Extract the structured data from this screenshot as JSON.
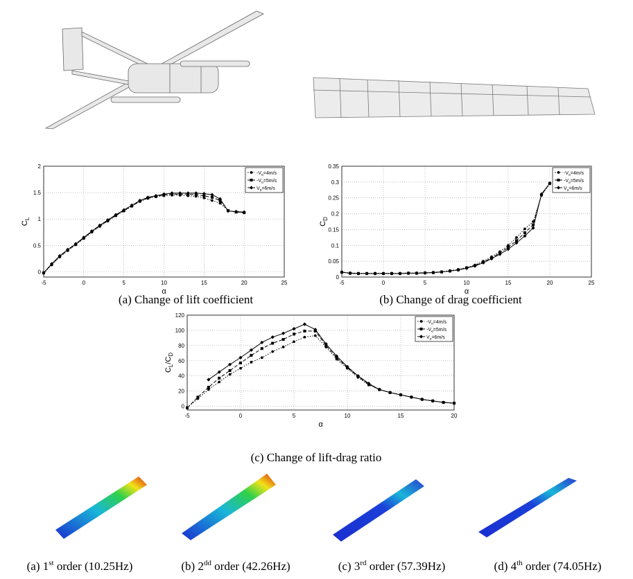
{
  "chart_data": [
    {
      "type": "line",
      "title": "(a) Change of lift coefficient",
      "xlabel": "α",
      "ylabel": [
        "C",
        "L"
      ],
      "x": [
        -5,
        -4,
        -3,
        -2,
        -1,
        0,
        1,
        2,
        3,
        4,
        5,
        6,
        7,
        8,
        9,
        10,
        11,
        12,
        13,
        14,
        15,
        16,
        17,
        18,
        19,
        20
      ],
      "xlim": [
        -5,
        25
      ],
      "xticks": [
        -5,
        0,
        5,
        10,
        15,
        20,
        25
      ],
      "ylim": [
        -0.1,
        2
      ],
      "yticks": [
        0,
        0.5,
        1,
        1.5,
        2
      ],
      "grid": true,
      "legend": "upper right",
      "series": [
        {
          "name": [
            "-V",
            "o",
            "=4m/s"
          ],
          "color": "#000000",
          "marker": "circle",
          "linestyle": "dotted",
          "values": [
            -0.03,
            0.13,
            0.28,
            0.4,
            0.51,
            0.63,
            0.75,
            0.86,
            0.96,
            1.06,
            1.15,
            1.24,
            1.33,
            1.39,
            1.42,
            1.44,
            1.45,
            1.45,
            1.44,
            1.43,
            1.4,
            1.35,
            1.3,
            1.16,
            1.13,
            1.12
          ]
        },
        {
          "name": [
            "-V",
            "o",
            "=5m/s"
          ],
          "color": "#000000",
          "marker": "square",
          "linestyle": "dashed",
          "values": [
            -0.02,
            0.14,
            0.29,
            0.41,
            0.52,
            0.64,
            0.76,
            0.87,
            0.97,
            1.07,
            1.16,
            1.25,
            1.34,
            1.4,
            1.43,
            1.46,
            1.47,
            1.47,
            1.47,
            1.46,
            1.44,
            1.41,
            1.35,
            1.16,
            1.13,
            1.12
          ]
        },
        {
          "name": [
            "V",
            "o",
            "=6m/s"
          ],
          "color": "#000000",
          "marker": "diamond",
          "linestyle": "solid",
          "values": [
            -0.02,
            0.15,
            0.3,
            0.42,
            0.53,
            0.65,
            0.77,
            0.88,
            0.98,
            1.08,
            1.17,
            1.26,
            1.35,
            1.41,
            1.44,
            1.47,
            1.49,
            1.49,
            1.49,
            1.49,
            1.48,
            1.46,
            1.38,
            1.15,
            1.14,
            1.13
          ]
        }
      ]
    },
    {
      "type": "line",
      "title": "(b) Change of drag coefficient",
      "xlabel": "α",
      "ylabel": [
        "C",
        "D"
      ],
      "x": [
        -5,
        -4,
        -3,
        -2,
        -1,
        0,
        1,
        2,
        3,
        4,
        5,
        6,
        7,
        8,
        9,
        10,
        11,
        12,
        13,
        14,
        15,
        16,
        17,
        18,
        19,
        20
      ],
      "xlim": [
        -5,
        25
      ],
      "xticks": [
        -5,
        0,
        5,
        10,
        15,
        20,
        25
      ],
      "ylim": [
        0,
        0.35
      ],
      "yticks": [
        0,
        0.05,
        0.1,
        0.15,
        0.2,
        0.25,
        0.3,
        0.35
      ],
      "grid": true,
      "legend": "upper right",
      "series": [
        {
          "name": [
            "-V",
            "o",
            "=4m/s"
          ],
          "color": "#000000",
          "marker": "circle",
          "linestyle": "dotted",
          "values": [
            0.016,
            0.013,
            0.012,
            0.012,
            0.012,
            0.012,
            0.012,
            0.012,
            0.013,
            0.013,
            0.014,
            0.015,
            0.017,
            0.02,
            0.024,
            0.03,
            0.038,
            0.05,
            0.064,
            0.08,
            0.1,
            0.125,
            0.152,
            0.175,
            0.258,
            0.295
          ]
        },
        {
          "name": [
            "-V",
            "o",
            "=5m/s"
          ],
          "color": "#000000",
          "marker": "square",
          "linestyle": "dashed",
          "values": [
            0.015,
            0.012,
            0.011,
            0.011,
            0.011,
            0.011,
            0.011,
            0.011,
            0.012,
            0.012,
            0.013,
            0.014,
            0.016,
            0.019,
            0.023,
            0.029,
            0.036,
            0.047,
            0.06,
            0.076,
            0.094,
            0.115,
            0.14,
            0.165,
            0.26,
            0.296
          ]
        },
        {
          "name": [
            "V",
            "o",
            "=6m/s"
          ],
          "color": "#000000",
          "marker": "diamond",
          "linestyle": "solid",
          "values": [
            0.015,
            0.012,
            0.011,
            0.011,
            0.011,
            0.011,
            0.011,
            0.011,
            0.012,
            0.012,
            0.013,
            0.014,
            0.016,
            0.019,
            0.022,
            0.028,
            0.035,
            0.045,
            0.058,
            0.072,
            0.088,
            0.108,
            0.13,
            0.155,
            0.262,
            0.296
          ]
        }
      ]
    },
    {
      "type": "line",
      "title": "(c) Change of lift-drag ratio",
      "xlabel": "α",
      "ylabel": [
        "C",
        "L",
        "/C",
        "D"
      ],
      "x": [
        -5,
        -4,
        -3,
        -2,
        -1,
        0,
        1,
        2,
        3,
        4,
        5,
        6,
        7,
        8,
        9,
        10,
        11,
        12,
        13,
        14,
        15,
        16,
        17,
        18,
        19,
        20
      ],
      "xlim": [
        -5,
        20
      ],
      "xticks": [
        -5,
        0,
        5,
        10,
        15,
        20
      ],
      "ylim": [
        -5,
        120
      ],
      "yticks": [
        0,
        20,
        40,
        60,
        80,
        100,
        120
      ],
      "grid": true,
      "legend": "upper right",
      "series": [
        {
          "name": [
            "-V",
            "o",
            "=4m/s"
          ],
          "color": "#000000",
          "marker": "circle",
          "linestyle": "dotted",
          "values": [
            -2,
            10,
            22,
            32,
            42,
            50,
            58,
            64,
            72,
            78,
            85,
            91,
            93,
            78,
            62,
            50,
            38,
            28,
            22,
            18,
            15,
            12,
            9,
            7,
            5,
            4
          ]
        },
        {
          "name": [
            "-V",
            "o",
            "=5m/s"
          ],
          "color": "#000000",
          "marker": "square",
          "linestyle": "dashed",
          "values": [
            -2,
            12,
            25,
            37,
            47,
            57,
            67,
            76,
            83,
            88,
            95,
            99,
            99,
            80,
            64,
            51,
            39,
            29,
            22,
            18,
            15,
            12,
            9,
            7,
            5,
            4
          ]
        },
        {
          "name": [
            "V",
            "o",
            "=6m/s"
          ],
          "color": "#000000",
          "marker": "diamond",
          "linestyle": "solid",
          "values": [
            null,
            null,
            35,
            45,
            55,
            64,
            74,
            84,
            91,
            96,
            102,
            108,
            101,
            82,
            66,
            52,
            40,
            30,
            22,
            18,
            15,
            12,
            9,
            7,
            5,
            4
          ]
        }
      ]
    }
  ],
  "mode_captions": [
    {
      "prefix": "(a) 1",
      "sup": "st",
      "suffix": " order (10.25Hz)"
    },
    {
      "prefix": "(b) 2",
      "sup": "dd",
      "suffix": " order (42.26Hz)"
    },
    {
      "prefix": "(c) 3",
      "sup": "rd",
      "suffix": " order (57.39Hz)"
    },
    {
      "prefix": "(d) 4",
      "sup": "th",
      "suffix": " order (74.05Hz)"
    }
  ]
}
